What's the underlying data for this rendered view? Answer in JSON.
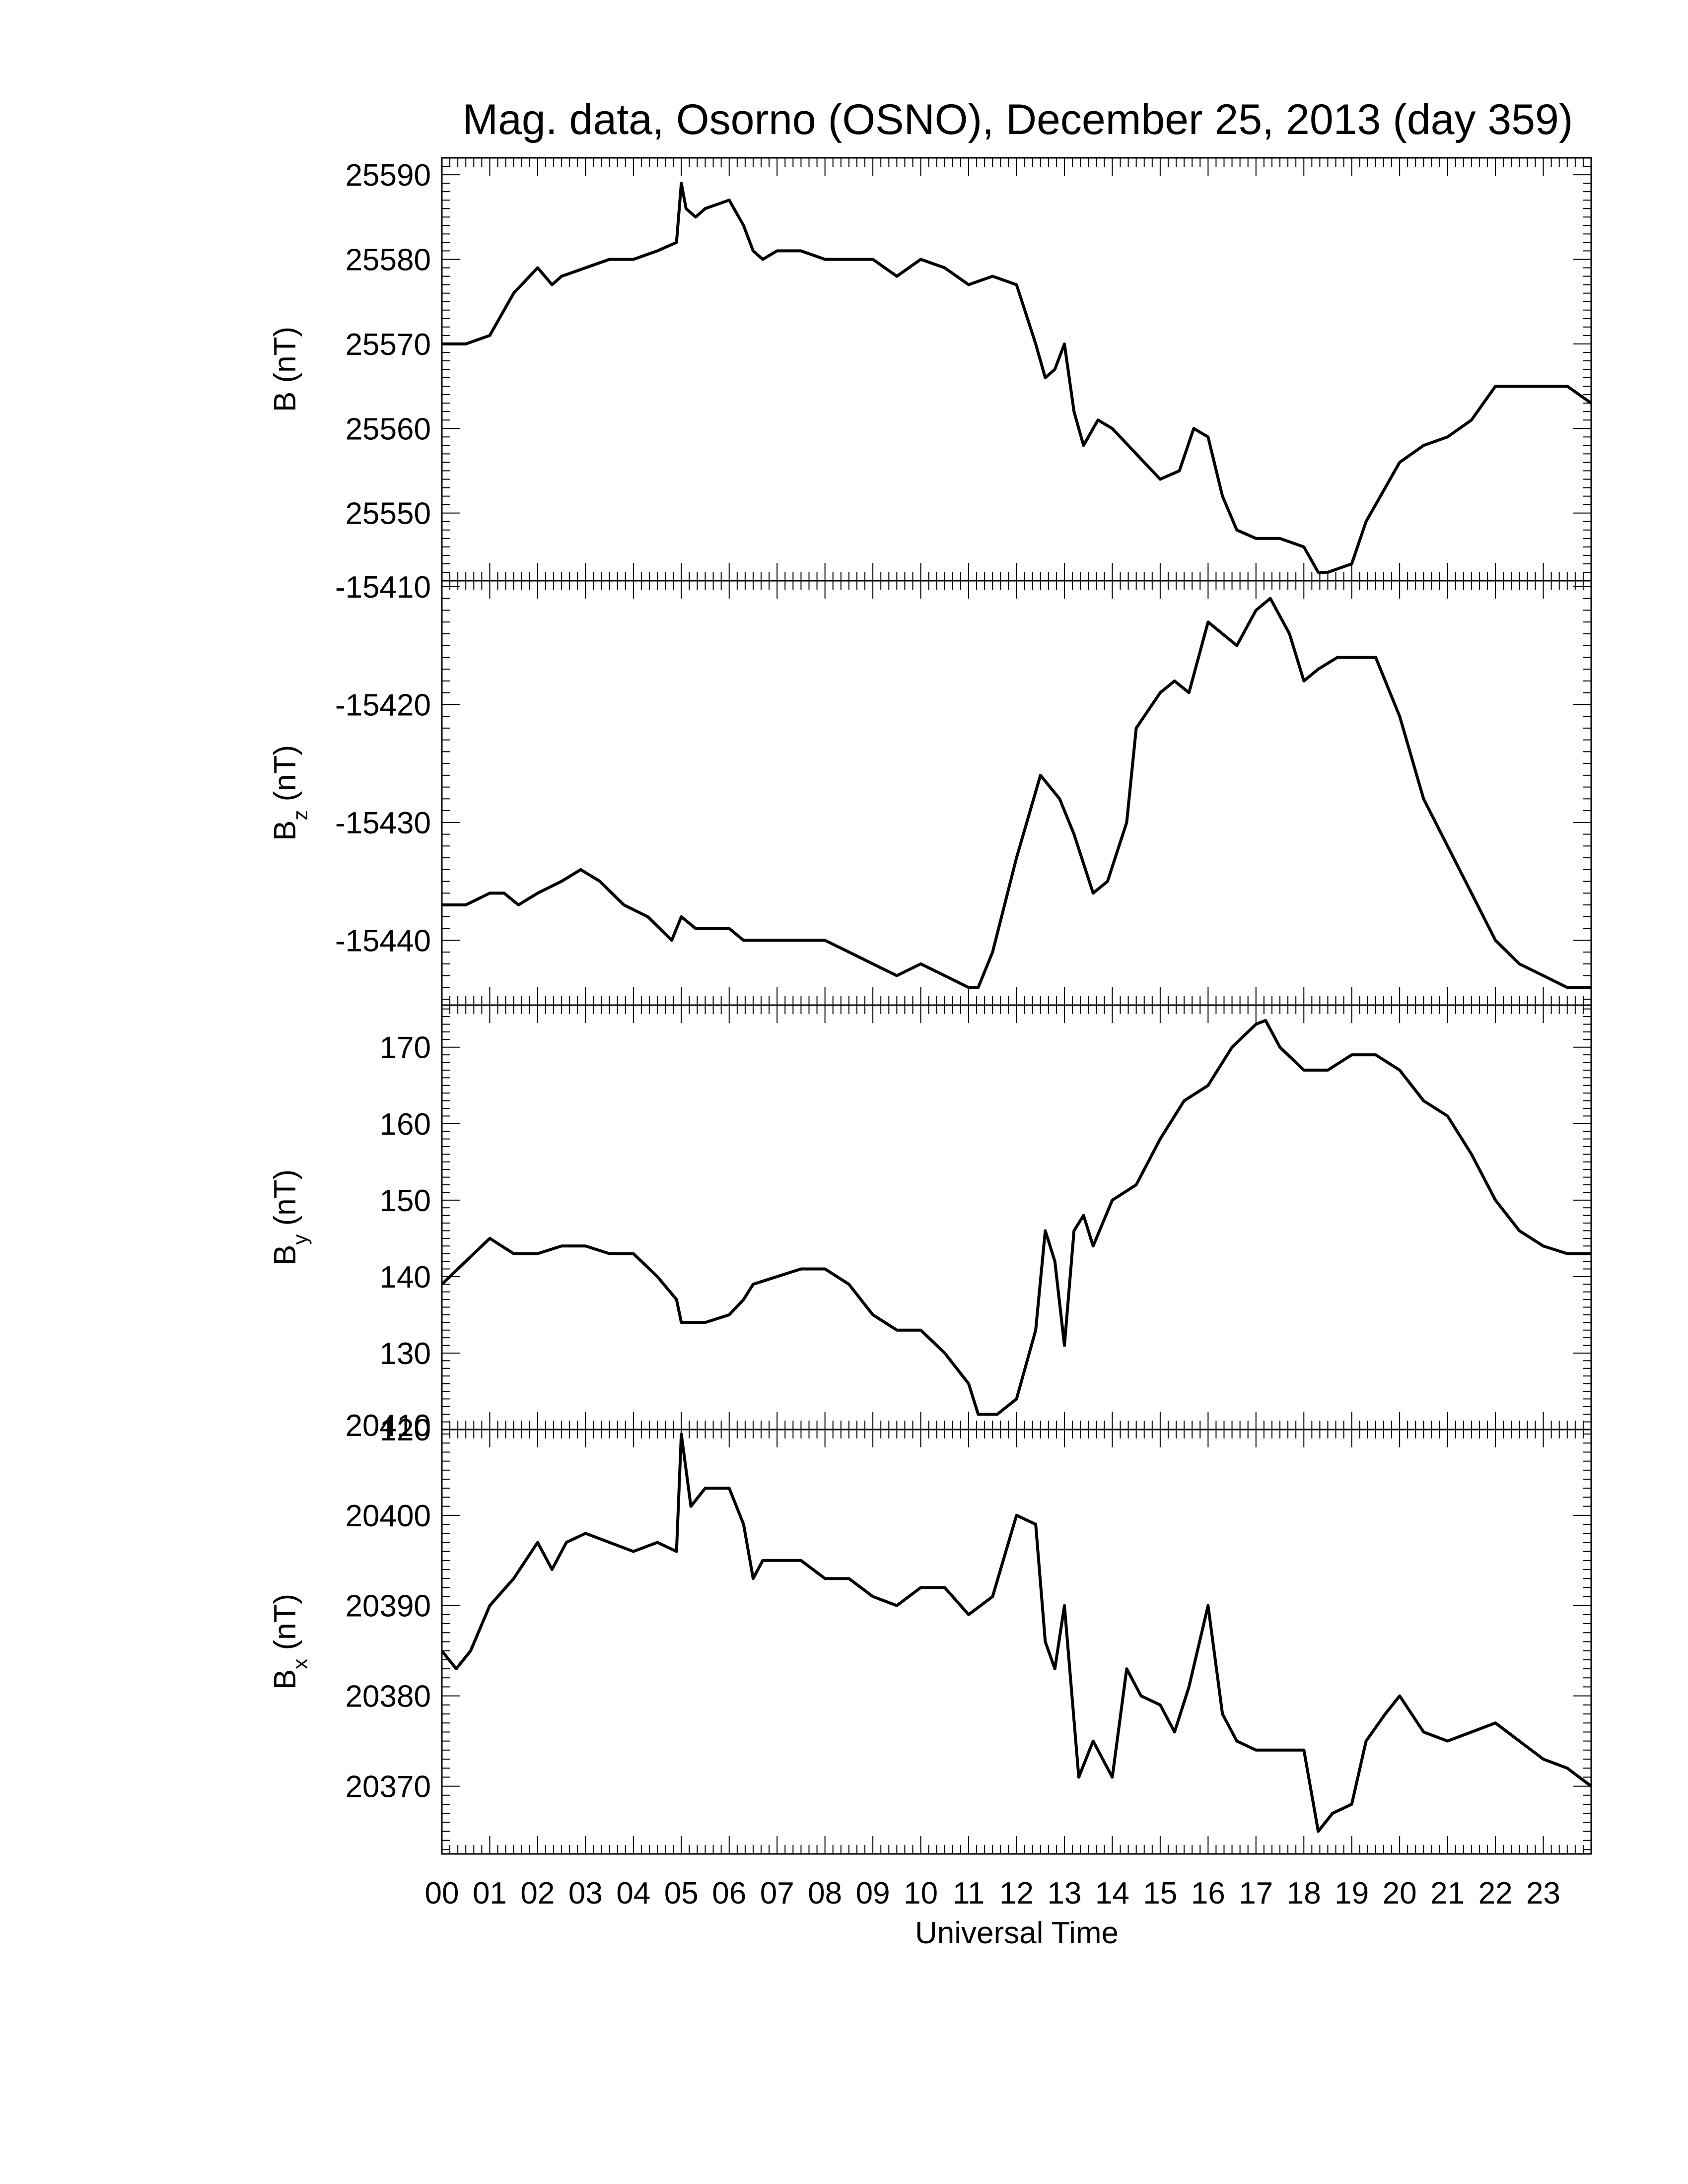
{
  "title": "Mag. data, Osorno (OSNO), December 25, 2013 (day 359)",
  "xlabel": "Universal Time",
  "x_ticks": [
    "00",
    "01",
    "02",
    "03",
    "04",
    "05",
    "06",
    "07",
    "08",
    "09",
    "10",
    "11",
    "12",
    "13",
    "14",
    "15",
    "16",
    "17",
    "18",
    "19",
    "20",
    "21",
    "22",
    "23"
  ],
  "chart_data": [
    {
      "type": "line",
      "panel": "B",
      "ylabel": "B (nT)",
      "ylabel_main": "B",
      "ylabel_sub": "",
      "ylabel_unit": "(nT)",
      "ylim": [
        25542,
        25592
      ],
      "yticks": [
        25550,
        25560,
        25570,
        25580,
        25590
      ],
      "x": [
        0,
        0.5,
        1,
        1.5,
        2,
        2.3,
        2.5,
        3,
        3.5,
        4,
        4.5,
        4.9,
        5,
        5.1,
        5.3,
        5.5,
        6,
        6.3,
        6.5,
        6.7,
        7,
        7.5,
        8,
        8.5,
        9,
        9.5,
        10,
        10.5,
        11,
        11.5,
        12,
        12.4,
        12.6,
        12.8,
        13,
        13.2,
        13.4,
        13.7,
        14,
        14.5,
        15,
        15.4,
        15.7,
        16,
        16.3,
        16.6,
        17,
        17.5,
        18,
        18.3,
        18.5,
        19,
        19.3,
        19.7,
        20,
        20.5,
        21,
        21.5,
        22,
        22.5,
        23,
        23.5,
        24
      ],
      "values": [
        25570,
        25570,
        25571,
        25576,
        25579,
        25577,
        25578,
        25579,
        25580,
        25580,
        25581,
        25582,
        25589,
        25586,
        25585,
        25586,
        25587,
        25584,
        25581,
        25580,
        25581,
        25581,
        25580,
        25580,
        25580,
        25578,
        25580,
        25579,
        25577,
        25578,
        25577,
        25570,
        25566,
        25567,
        25570,
        25562,
        25558,
        25561,
        25560,
        25557,
        25554,
        25555,
        25560,
        25559,
        25552,
        25548,
        25547,
        25547,
        25546,
        25543,
        25543,
        25544,
        25549,
        25553,
        25556,
        25558,
        25559,
        25561,
        25565,
        25565,
        25565,
        25565,
        25563
      ]
    },
    {
      "type": "line",
      "panel": "Bz",
      "ylabel": "Bz (nT)",
      "ylabel_main": "B",
      "ylabel_sub": "z",
      "ylabel_unit": "(nT)",
      "ylim": [
        -15445.5,
        -15409.5
      ],
      "yticks": [
        -15440,
        -15430,
        -15420,
        -15410
      ],
      "x": [
        0,
        0.5,
        1,
        1.3,
        1.6,
        2,
        2.5,
        2.9,
        3.3,
        3.8,
        4.3,
        4.8,
        5,
        5.3,
        5.7,
        6,
        6.3,
        6.6,
        7,
        7.5,
        8,
        8.5,
        9,
        9.5,
        10,
        10.5,
        11,
        11.2,
        11.5,
        12,
        12.5,
        12.9,
        13.2,
        13.6,
        13.9,
        14.3,
        14.5,
        15,
        15.3,
        15.6,
        16,
        16.3,
        16.6,
        17,
        17.3,
        17.7,
        18,
        18.3,
        18.7,
        19,
        19.5,
        20,
        20.5,
        21,
        21.5,
        22,
        22.5,
        23,
        23.5,
        24
      ],
      "values": [
        -15437,
        -15437,
        -15436,
        -15436,
        -15437,
        -15436,
        -15435,
        -15434,
        -15435,
        -15437,
        -15438,
        -15440,
        -15438,
        -15439,
        -15439,
        -15439,
        -15440,
        -15440,
        -15440,
        -15440,
        -15440,
        -15441,
        -15442,
        -15443,
        -15442,
        -15443,
        -15444,
        -15444,
        -15441,
        -15433,
        -15426,
        -15428,
        -15431,
        -15436,
        -15435,
        -15430,
        -15422,
        -15419,
        -15418,
        -15419,
        -15413,
        -15414,
        -15415,
        -15412,
        -15411,
        -15414,
        -15418,
        -15417,
        -15416,
        -15416,
        -15416,
        -15421,
        -15428,
        -15432,
        -15436,
        -15440,
        -15442,
        -15443,
        -15444,
        -15444
      ]
    },
    {
      "type": "line",
      "panel": "By",
      "ylabel": "By (nT)",
      "ylabel_main": "B",
      "ylabel_sub": "y",
      "ylabel_unit": "(nT)",
      "ylim": [
        120,
        175.5
      ],
      "yticks": [
        120,
        130,
        140,
        150,
        160,
        170
      ],
      "x": [
        0,
        0.5,
        1,
        1.5,
        2,
        2.5,
        3,
        3.5,
        4,
        4.5,
        4.9,
        5,
        5.5,
        6,
        6.3,
        6.5,
        7,
        7.5,
        8,
        8.5,
        9,
        9.5,
        10,
        10.5,
        11,
        11.2,
        11.6,
        12,
        12.4,
        12.6,
        12.8,
        13,
        13.2,
        13.4,
        13.6,
        14,
        14.5,
        15,
        15.5,
        16,
        16.5,
        17,
        17.2,
        17.5,
        18,
        18.5,
        19,
        19.5,
        20,
        20.5,
        21,
        21.5,
        22,
        22.5,
        23,
        23.5,
        24
      ],
      "values": [
        139,
        142,
        145,
        143,
        143,
        144,
        144,
        143,
        143,
        140,
        137,
        134,
        134,
        135,
        137,
        139,
        140,
        141,
        141,
        139,
        135,
        133,
        133,
        130,
        126,
        122,
        122,
        124,
        133,
        146,
        142,
        131,
        146,
        148,
        144,
        150,
        152,
        158,
        163,
        165,
        170,
        173,
        173.5,
        170,
        167,
        167,
        169,
        169,
        167,
        163,
        161,
        156,
        150,
        146,
        144,
        143,
        143
      ]
    },
    {
      "type": "line",
      "panel": "Bx",
      "ylabel": "Bx (nT)",
      "ylabel_main": "B",
      "ylabel_sub": "x",
      "ylabel_unit": "(nT)",
      "ylim": [
        20362.5,
        20409.5
      ],
      "yticks": [
        20370,
        20380,
        20390,
        20400,
        20410
      ],
      "x": [
        0,
        0.3,
        0.6,
        1,
        1.5,
        2,
        2.3,
        2.6,
        3,
        3.5,
        4,
        4.5,
        4.9,
        5,
        5.2,
        5.5,
        6,
        6.3,
        6.5,
        6.7,
        7,
        7.5,
        8,
        8.5,
        9,
        9.5,
        10,
        10.5,
        11,
        11.5,
        12,
        12.4,
        12.6,
        12.8,
        13,
        13.3,
        13.6,
        14,
        14.3,
        14.6,
        15,
        15.3,
        15.6,
        16,
        16.3,
        16.6,
        17,
        17.5,
        18,
        18.3,
        18.6,
        19,
        19.3,
        19.7,
        20,
        20.5,
        21,
        21.5,
        22,
        22.5,
        23,
        23.5,
        24
      ],
      "values": [
        20385,
        20383,
        20385,
        20390,
        20393,
        20397,
        20394,
        20397,
        20398,
        20397,
        20396,
        20397,
        20396,
        20409,
        20401,
        20403,
        20403,
        20399,
        20393,
        20395,
        20395,
        20395,
        20393,
        20393,
        20391,
        20390,
        20392,
        20392,
        20389,
        20391,
        20400,
        20399,
        20386,
        20383,
        20390,
        20371,
        20375,
        20371,
        20383,
        20380,
        20379,
        20376,
        20381,
        20390,
        20378,
        20375,
        20374,
        20374,
        20374,
        20365,
        20367,
        20368,
        20375,
        20378,
        20380,
        20376,
        20375,
        20376,
        20377,
        20375,
        20373,
        20372,
        20370
      ]
    }
  ]
}
